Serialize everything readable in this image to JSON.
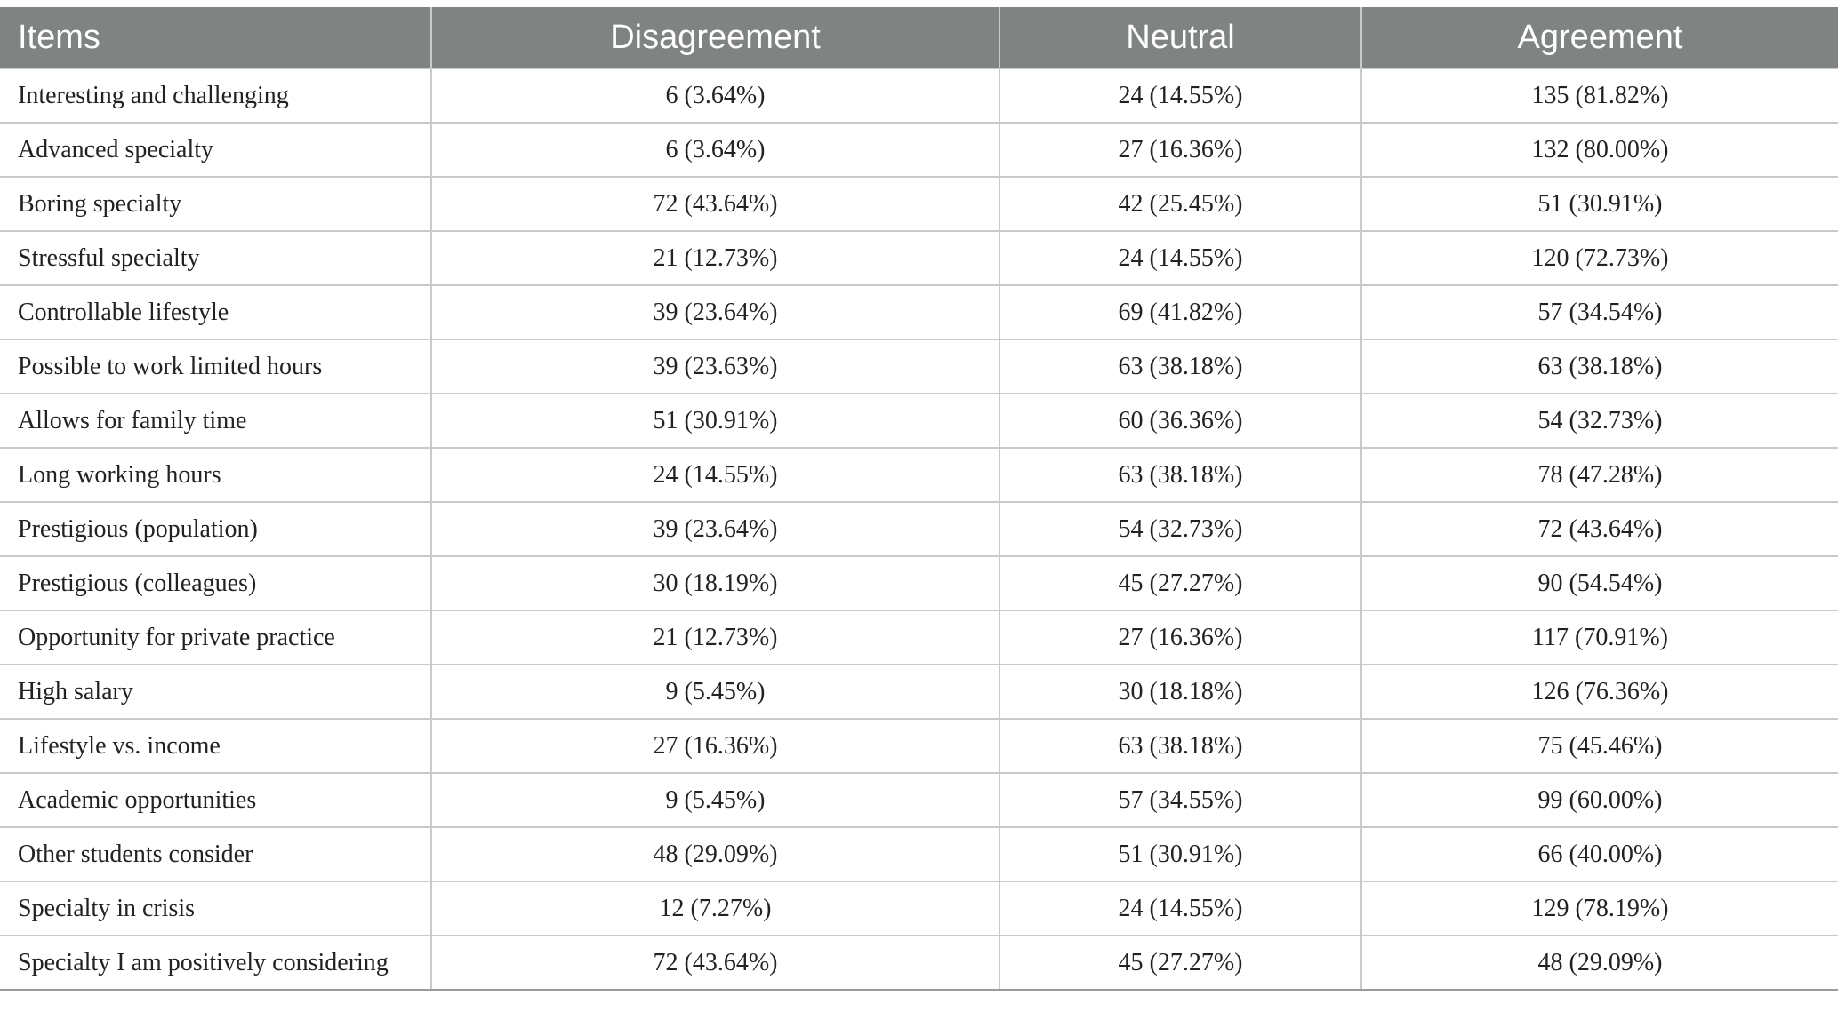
{
  "table": {
    "headers": [
      "Items",
      "Disagreement",
      "Neutral",
      "Agreement"
    ],
    "rows": [
      [
        "Interesting and challenging",
        "6 (3.64%)",
        "24 (14.55%)",
        "135 (81.82%)"
      ],
      [
        "Advanced specialty",
        "6 (3.64%)",
        "27 (16.36%)",
        "132 (80.00%)"
      ],
      [
        "Boring specialty",
        "72 (43.64%)",
        "42 (25.45%)",
        "51 (30.91%)"
      ],
      [
        "Stressful specialty",
        "21 (12.73%)",
        "24 (14.55%)",
        "120 (72.73%)"
      ],
      [
        "Controllable lifestyle",
        "39 (23.64%)",
        "69 (41.82%)",
        "57 (34.54%)"
      ],
      [
        "Possible to work limited hours",
        "39 (23.63%)",
        "63 (38.18%)",
        "63 (38.18%)"
      ],
      [
        "Allows for family time",
        "51 (30.91%)",
        "60 (36.36%)",
        "54 (32.73%)"
      ],
      [
        "Long working hours",
        "24 (14.55%)",
        "63 (38.18%)",
        "78 (47.28%)"
      ],
      [
        "Prestigious (population)",
        "39 (23.64%)",
        "54 (32.73%)",
        "72 (43.64%)"
      ],
      [
        "Prestigious (colleagues)",
        "30 (18.19%)",
        "45 (27.27%)",
        "90 (54.54%)"
      ],
      [
        "Opportunity for private practice",
        "21 (12.73%)",
        "27 (16.36%)",
        "117 (70.91%)"
      ],
      [
        "High salary",
        "9 (5.45%)",
        "30 (18.18%)",
        "126 (76.36%)"
      ],
      [
        "Lifestyle vs. income",
        "27 (16.36%)",
        "63 (38.18%)",
        "75 (45.46%)"
      ],
      [
        "Academic opportunities",
        "9 (5.45%)",
        "57 (34.55%)",
        "99 (60.00%)"
      ],
      [
        "Other students consider",
        "48 (29.09%)",
        "51 (30.91%)",
        "66 (40.00%)"
      ],
      [
        "Specialty in crisis",
        "12 (7.27%)",
        "24 (14.55%)",
        "129 (78.19%)"
      ],
      [
        "Specialty I am positively considering",
        "72 (43.64%)",
        "45 (27.27%)",
        "48 (29.09%)"
      ]
    ]
  }
}
